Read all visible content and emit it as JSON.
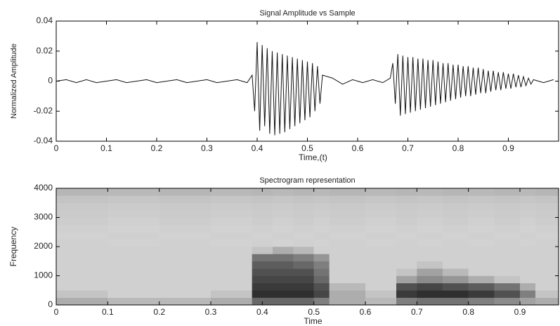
{
  "chart_data": [
    {
      "type": "line",
      "title": "Signal Amplitude vs Sample",
      "x_label": "Time,(t)",
      "y_label": "Normalized Amplitude",
      "xlim": [
        0,
        1
      ],
      "ylim": [
        -0.04,
        0.04
      ],
      "xticks": [
        0,
        0.1,
        0.2,
        0.3,
        0.4,
        0.5,
        0.6,
        0.7,
        0.8,
        0.9
      ],
      "yticks": [
        -0.04,
        -0.02,
        0,
        0.02,
        0.04
      ],
      "color": "#111111",
      "x": [
        0,
        0.02,
        0.04,
        0.06,
        0.08,
        0.1,
        0.12,
        0.14,
        0.16,
        0.18,
        0.2,
        0.22,
        0.24,
        0.26,
        0.28,
        0.3,
        0.32,
        0.34,
        0.36,
        0.38,
        0.39,
        0.395,
        0.4,
        0.405,
        0.41,
        0.415,
        0.42,
        0.425,
        0.43,
        0.435,
        0.44,
        0.445,
        0.45,
        0.455,
        0.46,
        0.465,
        0.47,
        0.475,
        0.48,
        0.485,
        0.49,
        0.495,
        0.5,
        0.505,
        0.51,
        0.515,
        0.52,
        0.525,
        0.53,
        0.55,
        0.57,
        0.59,
        0.61,
        0.63,
        0.65,
        0.665,
        0.67,
        0.675,
        0.68,
        0.685,
        0.69,
        0.695,
        0.7,
        0.705,
        0.71,
        0.715,
        0.72,
        0.725,
        0.73,
        0.735,
        0.74,
        0.745,
        0.75,
        0.755,
        0.76,
        0.765,
        0.77,
        0.775,
        0.78,
        0.785,
        0.79,
        0.795,
        0.8,
        0.805,
        0.81,
        0.815,
        0.82,
        0.825,
        0.83,
        0.835,
        0.84,
        0.845,
        0.85,
        0.855,
        0.86,
        0.865,
        0.87,
        0.875,
        0.88,
        0.885,
        0.89,
        0.895,
        0.9,
        0.905,
        0.91,
        0.915,
        0.92,
        0.925,
        0.93,
        0.935,
        0.94,
        0.945,
        0.95,
        0.97,
        0.99
      ],
      "values": [
        0,
        0.001,
        -0.001,
        0.001,
        -0.001,
        0,
        0.001,
        -0.001,
        0,
        0.001,
        -0.001,
        0,
        0.001,
        -0.001,
        0,
        0.001,
        -0.001,
        0,
        0.001,
        -0.001,
        0.004,
        -0.02,
        0.026,
        -0.033,
        0.024,
        -0.03,
        0.022,
        -0.035,
        0.02,
        -0.036,
        0.019,
        -0.035,
        0.018,
        -0.034,
        0.017,
        -0.032,
        0.016,
        -0.03,
        0.015,
        -0.028,
        0.014,
        -0.026,
        0.013,
        -0.024,
        0.012,
        -0.02,
        0.01,
        -0.015,
        0.004,
        0.002,
        -0.002,
        0.001,
        -0.001,
        0.001,
        -0.001,
        0.002,
        0.012,
        -0.015,
        0.018,
        -0.023,
        0.017,
        -0.022,
        0.016,
        -0.021,
        0.016,
        -0.02,
        0.015,
        -0.019,
        0.015,
        -0.018,
        0.014,
        -0.017,
        0.014,
        -0.016,
        0.013,
        -0.015,
        0.012,
        -0.014,
        0.012,
        -0.013,
        0.011,
        -0.012,
        0.011,
        -0.011,
        0.01,
        -0.01,
        0.01,
        -0.01,
        0.009,
        -0.009,
        0.009,
        -0.008,
        0.008,
        -0.008,
        0.007,
        -0.007,
        0.007,
        -0.006,
        0.006,
        -0.006,
        0.006,
        -0.005,
        0.005,
        -0.005,
        0.005,
        -0.004,
        0.004,
        -0.004,
        0.003,
        -0.003,
        0.002,
        -0.002,
        0.001,
        -0.001,
        0.001
      ]
    },
    {
      "type": "heatmap",
      "title": "Spectrogram representation",
      "x_label": "Time",
      "y_label": "Frequency",
      "xlim": [
        0,
        0.975
      ],
      "ylim": [
        0,
        4000
      ],
      "xticks": [
        0,
        0.1,
        0.2,
        0.3,
        0.4,
        0.5,
        0.6,
        0.7,
        0.8,
        0.9
      ],
      "yticks": [
        0,
        1000,
        2000,
        3000,
        4000
      ],
      "xbins": [
        0,
        0.1,
        0.2,
        0.3,
        0.38,
        0.42,
        0.46,
        0.5,
        0.53,
        0.6,
        0.66,
        0.7,
        0.75,
        0.8,
        0.85,
        0.9,
        0.93,
        0.975
      ],
      "ybins": [
        0,
        250,
        500,
        750,
        1000,
        1250,
        1500,
        1750,
        2000,
        2250,
        2500,
        2750,
        3000,
        3250,
        3500,
        3750,
        4000
      ],
      "values": [
        [
          0.3,
          0.25,
          0.25,
          0.3,
          0.6,
          0.6,
          0.6,
          0.5,
          0.3,
          0.25,
          0.5,
          0.55,
          0.55,
          0.5,
          0.45,
          0.35,
          0.3
        ],
        [
          0.2,
          0.15,
          0.15,
          0.2,
          0.85,
          0.85,
          0.85,
          0.75,
          0.3,
          0.2,
          0.8,
          0.85,
          0.85,
          0.8,
          0.7,
          0.5,
          0.2
        ],
        [
          0.15,
          0.15,
          0.15,
          0.15,
          0.8,
          0.8,
          0.8,
          0.7,
          0.25,
          0.15,
          0.7,
          0.75,
          0.7,
          0.65,
          0.55,
          0.3,
          0.15
        ],
        [
          0.15,
          0.15,
          0.15,
          0.15,
          0.75,
          0.75,
          0.75,
          0.6,
          0.15,
          0.15,
          0.35,
          0.45,
          0.4,
          0.3,
          0.2,
          0.15,
          0.15
        ],
        [
          0.15,
          0.15,
          0.15,
          0.15,
          0.7,
          0.7,
          0.7,
          0.55,
          0.15,
          0.15,
          0.2,
          0.35,
          0.25,
          0.15,
          0.15,
          0.15,
          0.15
        ],
        [
          0.15,
          0.15,
          0.15,
          0.15,
          0.65,
          0.65,
          0.6,
          0.5,
          0.15,
          0.15,
          0.15,
          0.2,
          0.15,
          0.15,
          0.15,
          0.15,
          0.15
        ],
        [
          0.15,
          0.15,
          0.15,
          0.15,
          0.55,
          0.55,
          0.5,
          0.4,
          0.15,
          0.15,
          0.15,
          0.15,
          0.15,
          0.15,
          0.15,
          0.15,
          0.15
        ],
        [
          0.15,
          0.15,
          0.15,
          0.15,
          0.2,
          0.3,
          0.25,
          0.15,
          0.15,
          0.15,
          0.15,
          0.15,
          0.15,
          0.15,
          0.15,
          0.15,
          0.15
        ],
        [
          0.15,
          0.14,
          0.15,
          0.14,
          0.15,
          0.14,
          0.15,
          0.14,
          0.15,
          0.14,
          0.15,
          0.14,
          0.15,
          0.14,
          0.15,
          0.14,
          0.15
        ],
        [
          0.14,
          0.15,
          0.14,
          0.15,
          0.14,
          0.15,
          0.14,
          0.15,
          0.14,
          0.15,
          0.14,
          0.15,
          0.14,
          0.15,
          0.14,
          0.15,
          0.14
        ],
        [
          0.15,
          0.14,
          0.15,
          0.14,
          0.15,
          0.14,
          0.15,
          0.14,
          0.15,
          0.14,
          0.15,
          0.14,
          0.15,
          0.14,
          0.15,
          0.14,
          0.15
        ],
        [
          0.16,
          0.15,
          0.16,
          0.15,
          0.16,
          0.15,
          0.16,
          0.15,
          0.16,
          0.15,
          0.16,
          0.15,
          0.16,
          0.15,
          0.16,
          0.15,
          0.16
        ],
        [
          0.17,
          0.16,
          0.17,
          0.16,
          0.17,
          0.16,
          0.17,
          0.16,
          0.17,
          0.16,
          0.17,
          0.16,
          0.17,
          0.16,
          0.17,
          0.16,
          0.17
        ],
        [
          0.18,
          0.17,
          0.18,
          0.17,
          0.18,
          0.17,
          0.18,
          0.17,
          0.18,
          0.17,
          0.18,
          0.17,
          0.18,
          0.17,
          0.18,
          0.17,
          0.18
        ],
        [
          0.2,
          0.19,
          0.2,
          0.19,
          0.2,
          0.19,
          0.2,
          0.19,
          0.2,
          0.19,
          0.2,
          0.19,
          0.2,
          0.19,
          0.2,
          0.19,
          0.2
        ],
        [
          0.26,
          0.25,
          0.26,
          0.25,
          0.26,
          0.25,
          0.26,
          0.25,
          0.26,
          0.25,
          0.26,
          0.25,
          0.26,
          0.25,
          0.26,
          0.25,
          0.26
        ]
      ]
    }
  ]
}
